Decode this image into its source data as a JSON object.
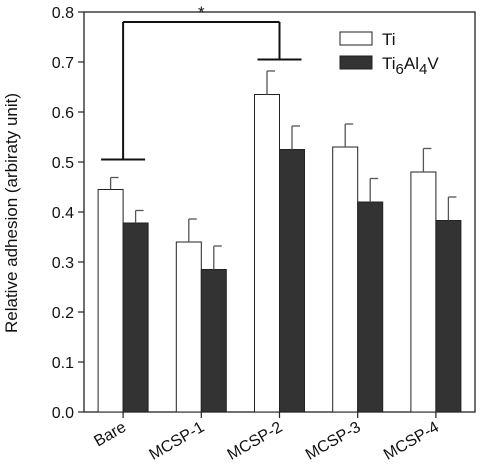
{
  "chart_data": {
    "type": "bar",
    "ylabel": "Relative adhesion (arbiraty unit)",
    "ylim": [
      0,
      0.8
    ],
    "yticks": [
      "0.0",
      "0.1",
      "0.2",
      "0.3",
      "0.4",
      "0.5",
      "0.6",
      "0.7",
      "0.8"
    ],
    "categories": [
      "Bare",
      "MCSP-1",
      "MCSP-2",
      "MCSP-3",
      "MCSP-4"
    ],
    "series": [
      {
        "name": "Ti",
        "color": "#ffffff",
        "values": [
          0.445,
          0.34,
          0.635,
          0.53,
          0.48
        ],
        "errors": [
          0.024,
          0.046,
          0.047,
          0.046,
          0.047
        ]
      },
      {
        "name": "Ti6Al4V",
        "color": "#333333",
        "values": [
          0.378,
          0.285,
          0.525,
          0.42,
          0.383
        ],
        "errors": [
          0.025,
          0.047,
          0.047,
          0.047,
          0.047
        ]
      }
    ],
    "legend_position": "top-right",
    "grid": false,
    "annotation": {
      "text": "*",
      "from": "Bare",
      "to": "MCSP-2",
      "levels": [
        0.505,
        0.705
      ],
      "top": 0.78
    }
  }
}
